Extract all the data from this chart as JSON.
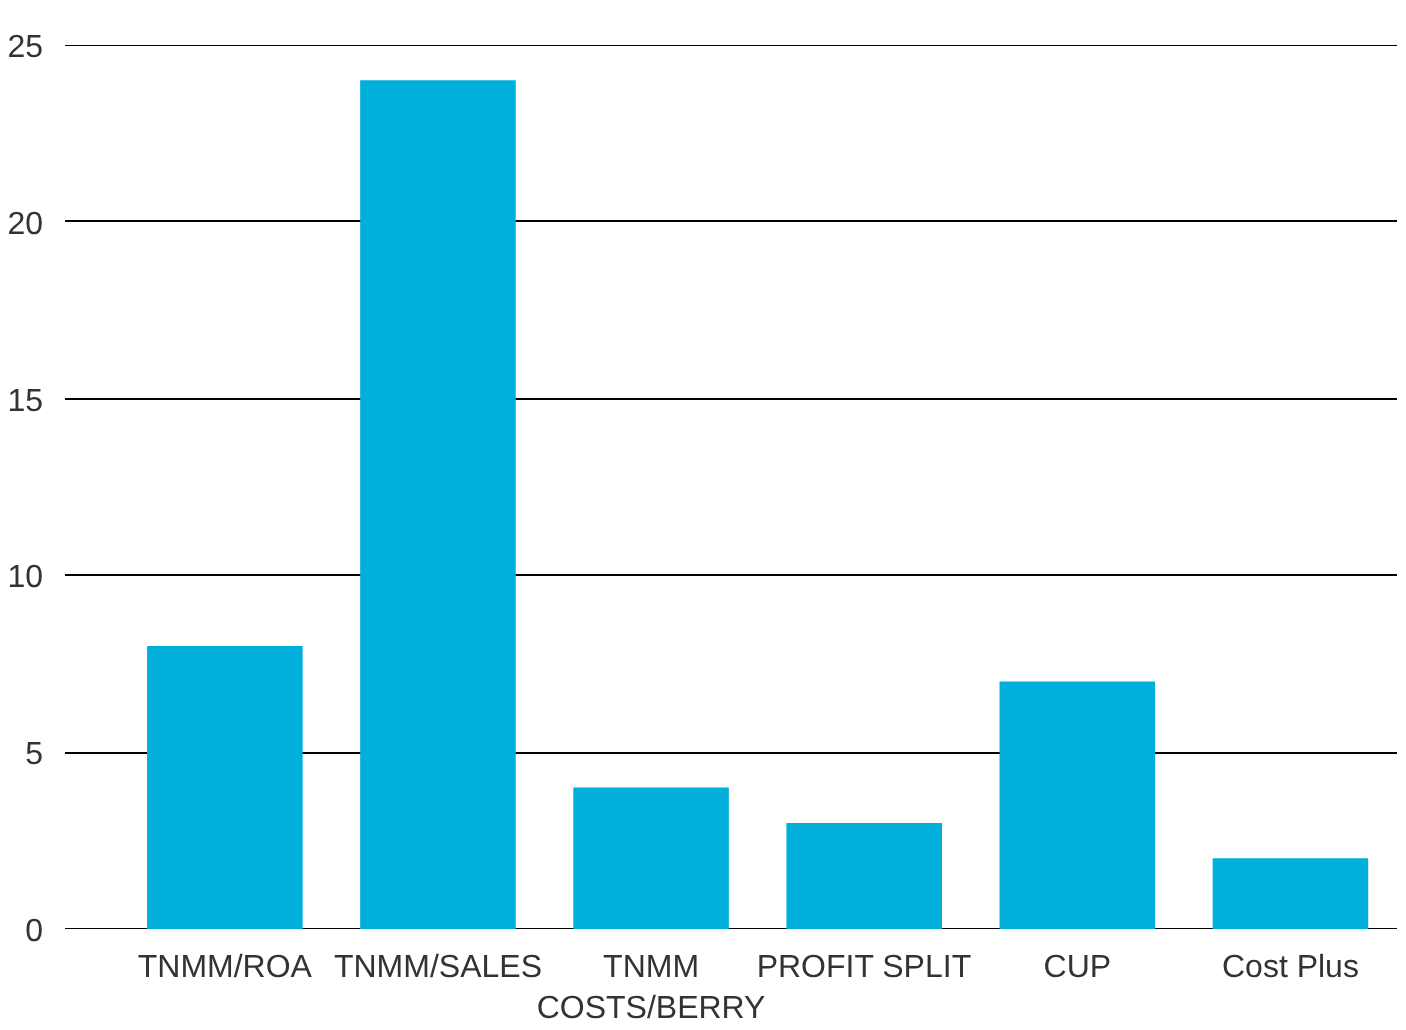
{
  "chart_data": {
    "type": "bar",
    "categories": [
      "TNMM/ROA",
      "TNMM/SALES",
      "TNMM\nCOSTS/BERRY",
      "PROFIT SPLIT",
      "CUP",
      "Cost Plus"
    ],
    "values": [
      8,
      24,
      4,
      3,
      7,
      2
    ],
    "color": "#00b0da",
    "ylim": [
      0,
      25
    ],
    "yticks": [
      0,
      5,
      10,
      15,
      20,
      25
    ],
    "grid": "y"
  }
}
